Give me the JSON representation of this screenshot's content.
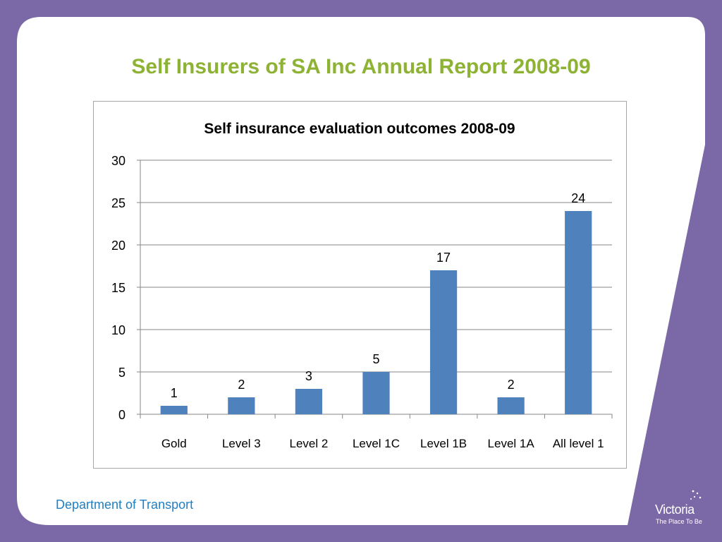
{
  "slide": {
    "title": "Self Insurers of SA Inc Annual Report 2008-09",
    "footer": "Department of Transport",
    "logo": {
      "word": "Victoria",
      "tagline": "The Place To Be"
    }
  },
  "colors": {
    "background": "#7b68a6",
    "title": "#8db234",
    "bar": "#4f81bd",
    "footer": "#1f7fc4"
  },
  "chart_data": {
    "type": "bar",
    "title": "Self insurance evaluation outcomes 2008-09",
    "categories": [
      "Gold",
      "Level 3",
      "Level 2",
      "Level 1C",
      "Level 1B",
      "Level 1A",
      "All level 1"
    ],
    "values": [
      1,
      2,
      3,
      5,
      17,
      2,
      24
    ],
    "ylim": [
      0,
      30
    ],
    "yticks": [
      0,
      5,
      10,
      15,
      20,
      25,
      30
    ],
    "grid": true,
    "legend": "none",
    "data_labels": true
  }
}
